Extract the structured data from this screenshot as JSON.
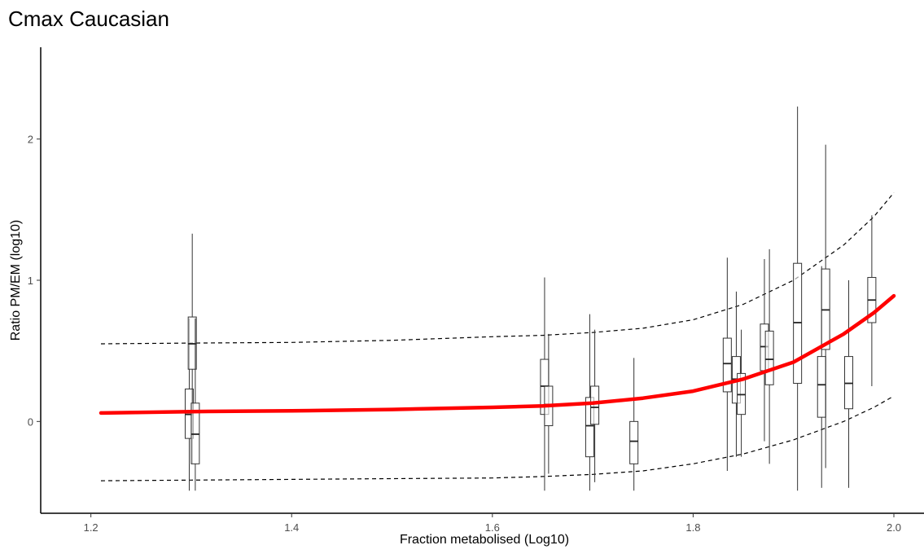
{
  "title": "Cmax Caucasian",
  "chart_data": {
    "type": "boxplot",
    "title": "Cmax Caucasian",
    "xlabel": "Fraction metabolised (Log10)",
    "ylabel": "Ratio PM/EM (log10)",
    "xlim": [
      1.15,
      2.03
    ],
    "ylim": [
      -0.65,
      2.65
    ],
    "x_ticks": [
      1.2,
      1.4,
      1.6,
      1.8,
      2.0
    ],
    "x_tick_labels": [
      "1.2",
      "1.4",
      "1.6",
      "1.8",
      "2.0"
    ],
    "y_ticks": [
      0,
      1,
      2
    ],
    "y_tick_labels": [
      "0",
      "1",
      "2"
    ],
    "grid": false,
    "boxes": [
      {
        "x": 1.298,
        "min": -0.49,
        "q1": -0.12,
        "median": 0.05,
        "q3": 0.23,
        "max": 0.73
      },
      {
        "x": 1.301,
        "min": -0.3,
        "q1": 0.37,
        "median": 0.55,
        "q3": 0.74,
        "max": 1.33
      },
      {
        "x": 1.304,
        "min": -0.49,
        "q1": -0.3,
        "median": -0.09,
        "q3": 0.13,
        "max": 0.73
      },
      {
        "x": 1.652,
        "min": -0.49,
        "q1": 0.05,
        "median": 0.25,
        "q3": 0.44,
        "max": 1.02
      },
      {
        "x": 1.656,
        "min": -0.37,
        "q1": -0.03,
        "median": 0.12,
        "q3": 0.25,
        "max": 0.62
      },
      {
        "x": 1.697,
        "min": -0.49,
        "q1": -0.25,
        "median": -0.03,
        "q3": 0.17,
        "max": 0.76
      },
      {
        "x": 1.702,
        "min": -0.43,
        "q1": -0.02,
        "median": 0.1,
        "q3": 0.25,
        "max": 0.65
      },
      {
        "x": 1.741,
        "min": -0.49,
        "q1": -0.3,
        "median": -0.14,
        "q3": 0.0,
        "max": 0.45
      },
      {
        "x": 1.834,
        "min": -0.35,
        "q1": 0.21,
        "median": 0.41,
        "q3": 0.59,
        "max": 1.16
      },
      {
        "x": 1.843,
        "min": -0.25,
        "q1": 0.13,
        "median": 0.3,
        "q3": 0.46,
        "max": 0.92
      },
      {
        "x": 1.848,
        "min": -0.25,
        "q1": 0.05,
        "median": 0.19,
        "q3": 0.34,
        "max": 0.65
      },
      {
        "x": 1.871,
        "min": -0.14,
        "q1": 0.36,
        "median": 0.53,
        "q3": 0.69,
        "max": 1.15
      },
      {
        "x": 1.876,
        "min": -0.3,
        "q1": 0.26,
        "median": 0.44,
        "q3": 0.64,
        "max": 1.22
      },
      {
        "x": 1.904,
        "min": -0.49,
        "q1": 0.27,
        "median": 0.7,
        "q3": 1.12,
        "max": 2.23
      },
      {
        "x": 1.928,
        "min": -0.47,
        "q1": 0.03,
        "median": 0.26,
        "q3": 0.46,
        "max": 1.1
      },
      {
        "x": 1.932,
        "min": -0.33,
        "q1": 0.51,
        "median": 0.79,
        "q3": 1.08,
        "max": 1.96
      },
      {
        "x": 1.955,
        "min": -0.47,
        "q1": 0.09,
        "median": 0.27,
        "q3": 0.46,
        "max": 1.0
      },
      {
        "x": 1.978,
        "min": 0.25,
        "q1": 0.7,
        "median": 0.86,
        "q3": 1.02,
        "max": 1.46
      }
    ],
    "fit_line": {
      "color": "#ff0000",
      "points": [
        [
          1.21,
          0.06
        ],
        [
          1.3,
          0.07
        ],
        [
          1.4,
          0.075
        ],
        [
          1.5,
          0.085
        ],
        [
          1.6,
          0.1
        ],
        [
          1.65,
          0.11
        ],
        [
          1.7,
          0.13
        ],
        [
          1.75,
          0.165
        ],
        [
          1.8,
          0.215
        ],
        [
          1.85,
          0.3
        ],
        [
          1.9,
          0.42
        ],
        [
          1.95,
          0.62
        ],
        [
          1.98,
          0.77
        ],
        [
          2.0,
          0.89
        ]
      ]
    },
    "upper_band": {
      "color": "#000000",
      "points": [
        [
          1.21,
          0.55
        ],
        [
          1.3,
          0.555
        ],
        [
          1.4,
          0.56
        ],
        [
          1.5,
          0.575
        ],
        [
          1.6,
          0.6
        ],
        [
          1.65,
          0.61
        ],
        [
          1.7,
          0.63
        ],
        [
          1.75,
          0.66
        ],
        [
          1.8,
          0.72
        ],
        [
          1.85,
          0.83
        ],
        [
          1.9,
          1.0
        ],
        [
          1.95,
          1.25
        ],
        [
          1.98,
          1.45
        ],
        [
          2.0,
          1.62
        ]
      ]
    },
    "lower_band": {
      "color": "#000000",
      "points": [
        [
          1.21,
          -0.42
        ],
        [
          1.3,
          -0.415
        ],
        [
          1.4,
          -0.41
        ],
        [
          1.5,
          -0.405
        ],
        [
          1.6,
          -0.4
        ],
        [
          1.65,
          -0.39
        ],
        [
          1.7,
          -0.375
        ],
        [
          1.75,
          -0.35
        ],
        [
          1.8,
          -0.3
        ],
        [
          1.85,
          -0.23
        ],
        [
          1.9,
          -0.13
        ],
        [
          1.95,
          0.0
        ],
        [
          1.98,
          0.1
        ],
        [
          2.0,
          0.18
        ]
      ]
    }
  }
}
